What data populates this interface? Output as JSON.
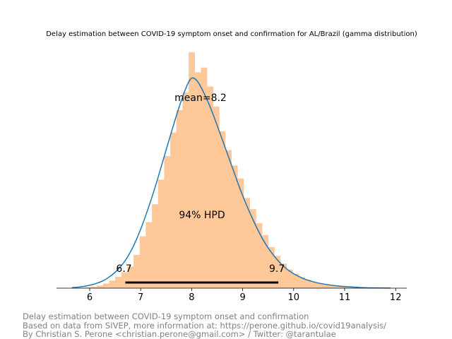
{
  "chart_data": {
    "type": "area",
    "title": "Delay estimation between COVID-19 symptom onset and confirmation for AL/Brazil (gamma distribution)",
    "xlabel": "",
    "ylabel": "",
    "xlim": [
      5.3,
      12.2
    ],
    "xticks": [
      6,
      7,
      8,
      9,
      10,
      11,
      12
    ],
    "grid": false,
    "colors": {
      "histogram": "#ffc899",
      "density": "#1f77b4",
      "hpd_line": "#000000",
      "text": "#000000"
    },
    "histogram": {
      "bin_width": 0.12,
      "bins": [
        {
          "x": 5.78,
          "h": 0.002
        },
        {
          "x": 5.9,
          "h": 0.004
        },
        {
          "x": 6.02,
          "h": 0.007
        },
        {
          "x": 6.14,
          "h": 0.011
        },
        {
          "x": 6.26,
          "h": 0.02
        },
        {
          "x": 6.38,
          "h": 0.032
        },
        {
          "x": 6.5,
          "h": 0.048
        },
        {
          "x": 6.62,
          "h": 0.067
        },
        {
          "x": 6.74,
          "h": 0.092
        },
        {
          "x": 6.86,
          "h": 0.141
        },
        {
          "x": 6.98,
          "h": 0.22
        },
        {
          "x": 7.1,
          "h": 0.28
        },
        {
          "x": 7.22,
          "h": 0.356
        },
        {
          "x": 7.34,
          "h": 0.46
        },
        {
          "x": 7.46,
          "h": 0.56
        },
        {
          "x": 7.58,
          "h": 0.66
        },
        {
          "x": 7.7,
          "h": 0.755
        },
        {
          "x": 7.82,
          "h": 0.83
        },
        {
          "x": 7.94,
          "h": 1.0
        },
        {
          "x": 8.06,
          "h": 0.915
        },
        {
          "x": 8.18,
          "h": 0.935
        },
        {
          "x": 8.3,
          "h": 0.855
        },
        {
          "x": 8.42,
          "h": 0.77
        },
        {
          "x": 8.54,
          "h": 0.665
        },
        {
          "x": 8.66,
          "h": 0.585
        },
        {
          "x": 8.78,
          "h": 0.52
        },
        {
          "x": 8.9,
          "h": 0.465
        },
        {
          "x": 9.02,
          "h": 0.382
        },
        {
          "x": 9.14,
          "h": 0.335
        },
        {
          "x": 9.26,
          "h": 0.275
        },
        {
          "x": 9.38,
          "h": 0.225
        },
        {
          "x": 9.5,
          "h": 0.174
        },
        {
          "x": 9.62,
          "h": 0.137
        },
        {
          "x": 9.74,
          "h": 0.104
        },
        {
          "x": 9.86,
          "h": 0.079
        },
        {
          "x": 9.98,
          "h": 0.061
        },
        {
          "x": 10.1,
          "h": 0.046
        },
        {
          "x": 10.22,
          "h": 0.036
        },
        {
          "x": 10.34,
          "h": 0.025
        },
        {
          "x": 10.46,
          "h": 0.02
        },
        {
          "x": 10.58,
          "h": 0.015
        },
        {
          "x": 10.7,
          "h": 0.012
        },
        {
          "x": 10.82,
          "h": 0.009
        },
        {
          "x": 10.94,
          "h": 0.007
        },
        {
          "x": 11.06,
          "h": 0.005
        },
        {
          "x": 11.18,
          "h": 0.004
        },
        {
          "x": 11.3,
          "h": 0.003
        },
        {
          "x": 11.42,
          "h": 0.002
        }
      ]
    },
    "density": [
      [
        5.65,
        0.002
      ],
      [
        5.8,
        0.005
      ],
      [
        5.95,
        0.01
      ],
      [
        6.1,
        0.018
      ],
      [
        6.25,
        0.03
      ],
      [
        6.4,
        0.05
      ],
      [
        6.55,
        0.078
      ],
      [
        6.7,
        0.118
      ],
      [
        6.85,
        0.175
      ],
      [
        7.0,
        0.25
      ],
      [
        7.15,
        0.34
      ],
      [
        7.3,
        0.44
      ],
      [
        7.45,
        0.55
      ],
      [
        7.6,
        0.66
      ],
      [
        7.75,
        0.765
      ],
      [
        7.9,
        0.855
      ],
      [
        8.0,
        0.89
      ],
      [
        8.1,
        0.88
      ],
      [
        8.2,
        0.845
      ],
      [
        8.35,
        0.775
      ],
      [
        8.5,
        0.69
      ],
      [
        8.65,
        0.6
      ],
      [
        8.8,
        0.51
      ],
      [
        8.95,
        0.42
      ],
      [
        9.1,
        0.34
      ],
      [
        9.25,
        0.268
      ],
      [
        9.4,
        0.205
      ],
      [
        9.55,
        0.155
      ],
      [
        9.7,
        0.115
      ],
      [
        9.85,
        0.084
      ],
      [
        10.0,
        0.061
      ],
      [
        10.2,
        0.04
      ],
      [
        10.4,
        0.026
      ],
      [
        10.6,
        0.017
      ],
      [
        10.8,
        0.011
      ],
      [
        11.0,
        0.007
      ],
      [
        11.2,
        0.004
      ],
      [
        11.4,
        0.002
      ],
      [
        11.6,
        0.001
      ],
      [
        11.9,
        0.0005
      ]
    ],
    "mean": 8.2,
    "hpd": {
      "low": 6.7,
      "high": 9.7
    },
    "annotations": {
      "mean": "mean=8.2",
      "hpd": "94% HPD",
      "hpd_low": "6.7",
      "hpd_high": "9.7"
    }
  },
  "footer": {
    "line1": "Delay estimation between COVID-19 symptom onset and confirmation",
    "line2": "Based on data from SIVEP, more information at: https://perone.github.io/covid19analysis/",
    "line3": "By Christian S. Perone <christian.perone@gmail.com> / Twitter: @tarantulae"
  }
}
